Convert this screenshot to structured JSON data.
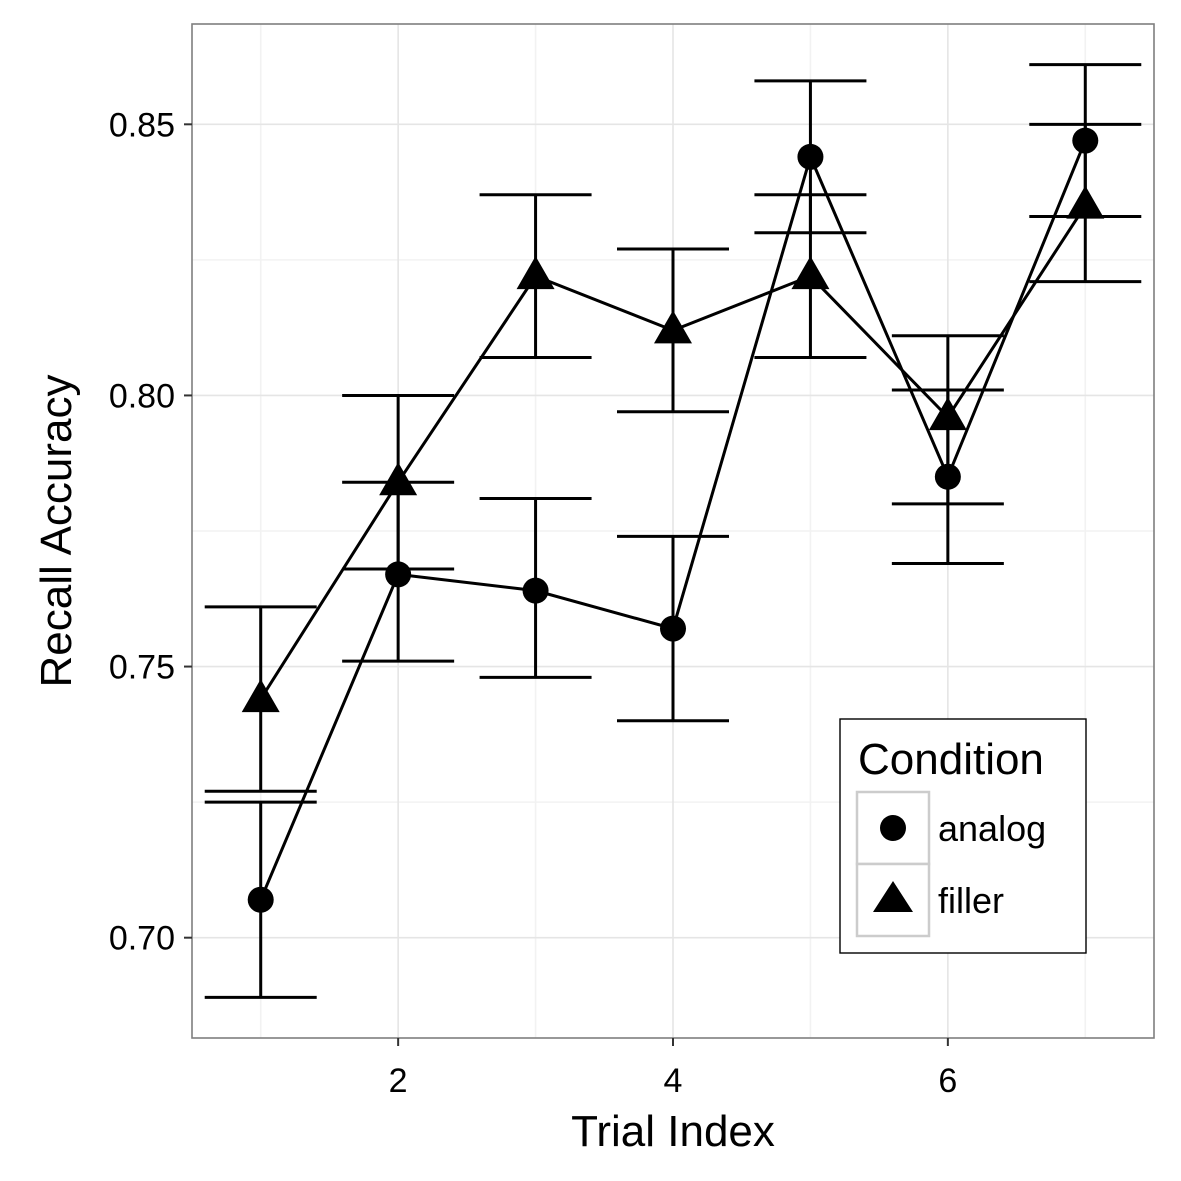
{
  "chart_data": {
    "type": "line",
    "xlabel": "Trial Index",
    "ylabel": "Recall Accuracy",
    "xlim": [
      0.5,
      7.5
    ],
    "ylim": [
      0.6815,
      0.8685
    ],
    "x_ticks": [
      2,
      4,
      6
    ],
    "x_tick_labels": [
      "2",
      "4",
      "6"
    ],
    "y_ticks": [
      0.7,
      0.75,
      0.8,
      0.85
    ],
    "y_tick_labels": [
      "0.70",
      "0.75",
      "0.80",
      "0.85"
    ],
    "x_minor_ticks": [
      1,
      3,
      5,
      7
    ],
    "y_minor_ticks": [
      0.725,
      0.775,
      0.825
    ],
    "grid": true,
    "legend": {
      "title": "Condition",
      "position": "bottom-right",
      "entries": [
        {
          "label": "analog",
          "shape": "circle"
        },
        {
          "label": "filler",
          "shape": "triangle"
        }
      ]
    },
    "series": [
      {
        "name": "analog",
        "shape": "circle",
        "x": [
          1,
          2,
          3,
          4,
          5,
          6,
          7
        ],
        "y": [
          0.707,
          0.767,
          0.764,
          0.757,
          0.844,
          0.785,
          0.847
        ],
        "lower": [
          0.689,
          0.751,
          0.748,
          0.74,
          0.83,
          0.769,
          0.833
        ],
        "upper": [
          0.725,
          0.784,
          0.781,
          0.774,
          0.858,
          0.801,
          0.861
        ]
      },
      {
        "name": "filler",
        "shape": "triangle",
        "x": [
          1,
          2,
          3,
          4,
          5,
          6,
          7
        ],
        "y": [
          0.744,
          0.784,
          0.822,
          0.812,
          0.822,
          0.796,
          0.835
        ],
        "lower": [
          0.727,
          0.768,
          0.807,
          0.797,
          0.807,
          0.78,
          0.821
        ],
        "upper": [
          0.761,
          0.8,
          0.837,
          0.827,
          0.837,
          0.811,
          0.85
        ]
      }
    ],
    "colors": {
      "mark": "#000000",
      "panel_border": "#7f7f7f",
      "grid_major": "#e5e5e5",
      "grid_minor": "#f2f2f2",
      "legend_key_border": "#cccccc"
    }
  }
}
